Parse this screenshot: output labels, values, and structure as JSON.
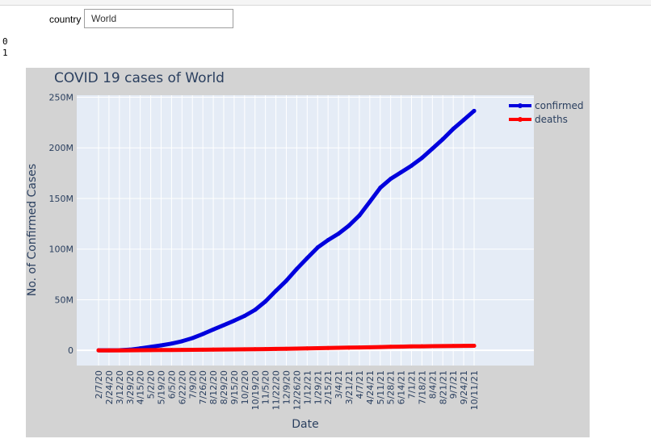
{
  "widget": {
    "label": "country",
    "value": "World"
  },
  "output_lines": [
    "0",
    "1"
  ],
  "chart_data": {
    "type": "line",
    "title": "COVID 19 cases of World",
    "xlabel": "Date",
    "ylabel": "No. of Confirmed Cases",
    "x": [
      "2/7/20",
      "2/24/20",
      "3/12/20",
      "3/29/20",
      "4/15/20",
      "5/2/20",
      "5/19/20",
      "6/5/20",
      "6/22/20",
      "7/9/20",
      "7/26/20",
      "8/12/20",
      "8/29/20",
      "9/15/20",
      "10/2/20",
      "10/19/20",
      "11/5/20",
      "11/22/20",
      "12/9/20",
      "12/26/20",
      "1/12/21",
      "1/29/21",
      "2/15/21",
      "3/4/21",
      "3/21/21",
      "4/7/21",
      "4/24/21",
      "5/11/21",
      "5/28/21",
      "6/14/21",
      "7/1/21",
      "7/18/21",
      "8/4/21",
      "8/21/21",
      "9/7/21",
      "9/24/21",
      "10/11/21"
    ],
    "yticks": [
      0,
      50,
      100,
      150,
      200,
      250
    ],
    "ytick_labels": [
      "0",
      "50M",
      "100M",
      "150M",
      "200M",
      "250M"
    ],
    "ylim": [
      -15,
      252
    ],
    "y_units": "millions",
    "series": [
      {
        "name": "confirmed",
        "color": "#0000dd",
        "values": [
          0.03,
          0.08,
          0.13,
          0.7,
          2.0,
          3.4,
          4.9,
          6.7,
          9.0,
          12.1,
          16.2,
          20.6,
          24.9,
          29.3,
          34.0,
          40.0,
          48.4,
          58.8,
          68.8,
          80.4,
          91.1,
          101.6,
          108.9,
          115.2,
          123.2,
          133.2,
          146.7,
          160.6,
          169.4,
          175.9,
          182.4,
          190.1,
          199.2,
          208.6,
          218.8,
          227.6,
          236.5
        ]
      },
      {
        "name": "deaths",
        "color": "#ff0000",
        "values": [
          0.0,
          0.0,
          0.01,
          0.03,
          0.13,
          0.24,
          0.32,
          0.4,
          0.49,
          0.57,
          0.65,
          0.74,
          0.84,
          0.93,
          1.02,
          1.13,
          1.26,
          1.39,
          1.55,
          1.72,
          1.92,
          2.14,
          2.33,
          2.51,
          2.68,
          2.86,
          3.05,
          3.26,
          3.49,
          3.69,
          3.87,
          4.0,
          4.11,
          4.23,
          4.35,
          4.46,
          4.55
        ]
      }
    ],
    "legend": {
      "position": "top-right",
      "entries": [
        "confirmed",
        "deaths"
      ]
    },
    "colors": {
      "paper": "#d3d3d3",
      "plot": "#e5ecf6",
      "grid": "#ffffff",
      "text": "#2a3f5f"
    }
  }
}
